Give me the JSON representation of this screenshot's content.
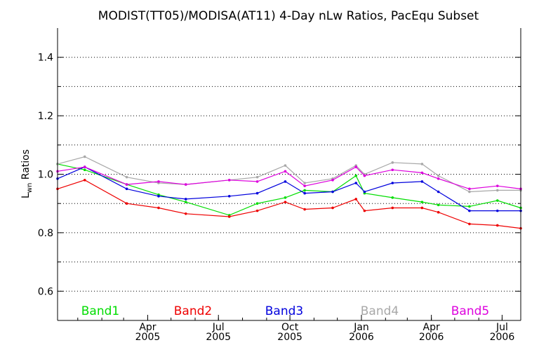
{
  "chart_data": {
    "type": "line",
    "title": "MODIST(TT05)/MODISA(AT11) 4-Day nLw Ratios, PacEqu Subset",
    "ylabel_main": "L",
    "ylabel_sub": "wn",
    "ylabel_rest": " Ratios",
    "ylim": [
      0.5,
      1.5
    ],
    "xlim": [
      "2004-12-06",
      "2006-07-25"
    ],
    "grid": "horizontal-dotted",
    "legend_position": "bottom",
    "y_ticks": [
      {
        "value": 0.6,
        "label": "0.6"
      },
      {
        "value": 0.8,
        "label": "0.8"
      },
      {
        "value": 1.0,
        "label": "1.0"
      },
      {
        "value": 1.2,
        "label": "1.2"
      },
      {
        "value": 1.4,
        "label": "1.4"
      }
    ],
    "x_ticks": [
      {
        "date": "2005-04-01",
        "month": "Apr",
        "year": "2005"
      },
      {
        "date": "2005-07-01",
        "month": "Jul",
        "year": "2005"
      },
      {
        "date": "2005-10-01",
        "month": "Oct",
        "year": "2005"
      },
      {
        "date": "2006-01-01",
        "month": "Jan",
        "year": "2006"
      },
      {
        "date": "2006-04-01",
        "month": "Apr",
        "year": "2006"
      },
      {
        "date": "2006-07-01",
        "month": "Jul",
        "year": "2006"
      }
    ],
    "x": [
      "2004-12-06",
      "2005-01-10",
      "2005-03-05",
      "2005-04-15",
      "2005-05-20",
      "2005-07-15",
      "2005-08-20",
      "2005-09-25",
      "2005-10-20",
      "2005-11-25",
      "2005-12-25",
      "2006-01-05",
      "2006-02-10",
      "2006-03-20",
      "2006-04-10",
      "2006-05-20",
      "2006-06-25",
      "2006-07-25"
    ],
    "series": [
      {
        "name": "Band1",
        "color": "#00dd00",
        "values": [
          1.035,
          1.015,
          0.965,
          0.93,
          0.905,
          0.86,
          0.9,
          0.92,
          0.945,
          0.94,
          0.995,
          0.935,
          0.92,
          0.905,
          0.895,
          0.89,
          0.91,
          0.885
        ]
      },
      {
        "name": "Band2",
        "color": "#ee0000",
        "values": [
          0.95,
          0.98,
          0.9,
          0.885,
          0.865,
          0.855,
          0.875,
          0.905,
          0.88,
          0.885,
          0.915,
          0.875,
          0.885,
          0.885,
          0.87,
          0.83,
          0.825,
          0.815
        ]
      },
      {
        "name": "Band3",
        "color": "#0000dd",
        "values": [
          0.985,
          1.025,
          0.95,
          0.925,
          0.915,
          0.925,
          0.935,
          0.975,
          0.935,
          0.94,
          0.97,
          0.94,
          0.97,
          0.975,
          0.94,
          0.875,
          0.875,
          0.875
        ]
      },
      {
        "name": "Band4",
        "color": "#a8a8a8",
        "values": [
          1.035,
          1.06,
          0.99,
          0.97,
          0.965,
          0.98,
          0.99,
          1.03,
          0.97,
          0.985,
          1.03,
          1.0,
          1.04,
          1.035,
          0.995,
          0.94,
          0.945,
          0.945
        ]
      },
      {
        "name": "Band5",
        "color": "#dd00dd",
        "values": [
          1.01,
          1.025,
          0.965,
          0.975,
          0.965,
          0.98,
          0.975,
          1.01,
          0.96,
          0.98,
          1.025,
          0.995,
          1.015,
          1.005,
          0.985,
          0.95,
          0.96,
          0.95
        ]
      }
    ]
  }
}
